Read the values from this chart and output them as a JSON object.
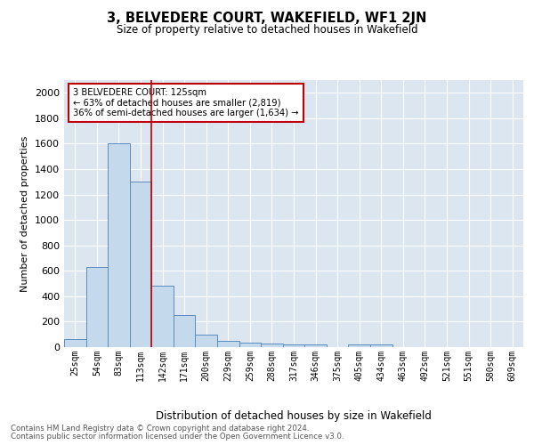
{
  "title": "3, BELVEDERE COURT, WAKEFIELD, WF1 2JN",
  "subtitle": "Size of property relative to detached houses in Wakefield",
  "xlabel": "Distribution of detached houses by size in Wakefield",
  "ylabel": "Number of detached properties",
  "footnote1": "Contains HM Land Registry data © Crown copyright and database right 2024.",
  "footnote2": "Contains public sector information licensed under the Open Government Licence v3.0.",
  "categories": [
    "25sqm",
    "54sqm",
    "83sqm",
    "113sqm",
    "142sqm",
    "171sqm",
    "200sqm",
    "229sqm",
    "259sqm",
    "288sqm",
    "317sqm",
    "346sqm",
    "375sqm",
    "405sqm",
    "434sqm",
    "463sqm",
    "492sqm",
    "521sqm",
    "551sqm",
    "580sqm",
    "609sqm"
  ],
  "values": [
    60,
    630,
    1600,
    1300,
    480,
    250,
    100,
    50,
    35,
    28,
    20,
    18,
    0,
    18,
    20,
    0,
    0,
    0,
    0,
    0,
    0
  ],
  "bar_color": "#c5d9ed",
  "bar_edge_color": "#5b8cbf",
  "bg_color": "#dce6f1",
  "grid_color": "#ffffff",
  "property_line_x": 3.5,
  "property_line_color": "#c00000",
  "annotation_text": "3 BELVEDERE COURT: 125sqm\n← 63% of detached houses are smaller (2,819)\n36% of semi-detached houses are larger (1,634) →",
  "annotation_box_color": "#ffffff",
  "annotation_box_edge": "#c00000",
  "ylim": [
    0,
    2100
  ],
  "yticks": [
    0,
    200,
    400,
    600,
    800,
    1000,
    1200,
    1400,
    1600,
    1800,
    2000
  ]
}
